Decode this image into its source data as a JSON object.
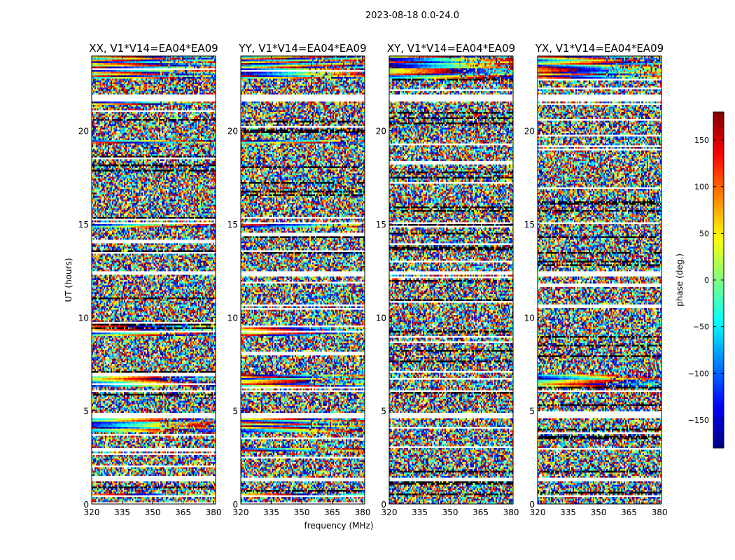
{
  "figure": {
    "suptitle": "2023-08-18 0.0-24.0",
    "shared_xlabel": "frequency (MHz)"
  },
  "colorbar": {
    "label": "phase (deg.)",
    "min": -180,
    "max": 180,
    "ticks": [
      -150,
      -100,
      -50,
      0,
      50,
      100,
      150
    ],
    "tick_labels": [
      "−150",
      "−100",
      "−50",
      "0",
      "50",
      "100",
      "150"
    ],
    "colormap": "jet",
    "colors": [
      "#00007f",
      "#0000ff",
      "#007fff",
      "#00ffff",
      "#7fff7f",
      "#ffff00",
      "#ff7f00",
      "#ff0000",
      "#7f0000"
    ]
  },
  "chart_data": [
    {
      "type": "heatmap",
      "title": "XX, V1*V14=EA04*EA09",
      "xlabel": "",
      "ylabel": "UT (hours)",
      "xlim": [
        320,
        381
      ],
      "ylim": [
        0,
        24
      ],
      "xticks": [
        320,
        335,
        350,
        365,
        380
      ],
      "yticks": [
        0,
        5,
        10,
        15,
        20
      ],
      "value": "phase (deg.)",
      "coherent_bands_hours": [
        [
          22.8,
          24.0
        ],
        [
          21.4,
          21.6
        ],
        [
          19.3,
          19.5
        ],
        [
          14.8,
          15.0
        ],
        [
          9.0,
          9.6
        ],
        [
          6.3,
          6.9
        ],
        [
          3.8,
          4.6
        ],
        [
          2.8,
          3.0
        ],
        [
          0.4,
          0.6
        ]
      ],
      "blank_rows_hours": [
        [
          21.6,
          21.9
        ],
        [
          15.0,
          15.1
        ],
        [
          12.3,
          12.5
        ],
        [
          6.0,
          6.1
        ],
        [
          4.6,
          4.9
        ],
        [
          1.2,
          1.4
        ]
      ]
    },
    {
      "type": "heatmap",
      "title": "YY, V1*V14=EA04*EA09",
      "xlabel": "frequency (MHz)",
      "ylabel": "",
      "xlim": [
        320,
        381
      ],
      "ylim": [
        0,
        24
      ],
      "xticks": [
        320,
        335,
        350,
        365,
        380
      ],
      "yticks": [
        0,
        5,
        10,
        15,
        20
      ],
      "value": "phase (deg.)",
      "coherent_bands_hours": [
        [
          22.8,
          24.0
        ],
        [
          19.3,
          19.5
        ],
        [
          14.8,
          15.0
        ],
        [
          9.0,
          9.6
        ],
        [
          6.3,
          6.9
        ],
        [
          3.8,
          4.6
        ],
        [
          2.8,
          3.0
        ],
        [
          0.4,
          0.6
        ]
      ],
      "blank_rows_hours": [
        [
          21.6,
          21.9
        ],
        [
          15.0,
          15.1
        ],
        [
          12.3,
          12.5
        ],
        [
          6.0,
          6.1
        ],
        [
          4.6,
          4.9
        ],
        [
          1.2,
          1.4
        ]
      ]
    },
    {
      "type": "heatmap",
      "title": "XY, V1*V14=EA04*EA09",
      "xlabel": "",
      "ylabel": "",
      "xlim": [
        320,
        381
      ],
      "ylim": [
        0,
        24
      ],
      "xticks": [
        320,
        335,
        350,
        365,
        380
      ],
      "yticks": [
        0,
        5,
        10,
        15,
        20
      ],
      "value": "phase (deg.)",
      "coherent_bands_hours": [
        [
          22.8,
          24.0
        ]
      ],
      "blank_rows_hours": [
        [
          21.6,
          21.9
        ],
        [
          15.0,
          15.1
        ],
        [
          12.3,
          12.5
        ],
        [
          6.0,
          6.1
        ],
        [
          4.6,
          4.9
        ],
        [
          1.2,
          1.4
        ]
      ]
    },
    {
      "type": "heatmap",
      "title": "YX, V1*V14=EA04*EA09",
      "xlabel": "",
      "ylabel": "",
      "xlim": [
        320,
        381
      ],
      "ylim": [
        0,
        24
      ],
      "xticks": [
        320,
        335,
        350,
        365,
        380
      ],
      "yticks": [
        0,
        5,
        10,
        15,
        20
      ],
      "value": "phase (deg.)",
      "coherent_bands_hours": [
        [
          22.8,
          24.0
        ],
        [
          6.3,
          6.9
        ]
      ],
      "blank_rows_hours": [
        [
          21.6,
          21.9
        ],
        [
          15.0,
          15.1
        ],
        [
          12.3,
          12.5
        ],
        [
          6.0,
          6.1
        ],
        [
          4.6,
          4.9
        ],
        [
          1.2,
          1.4
        ]
      ]
    }
  ]
}
